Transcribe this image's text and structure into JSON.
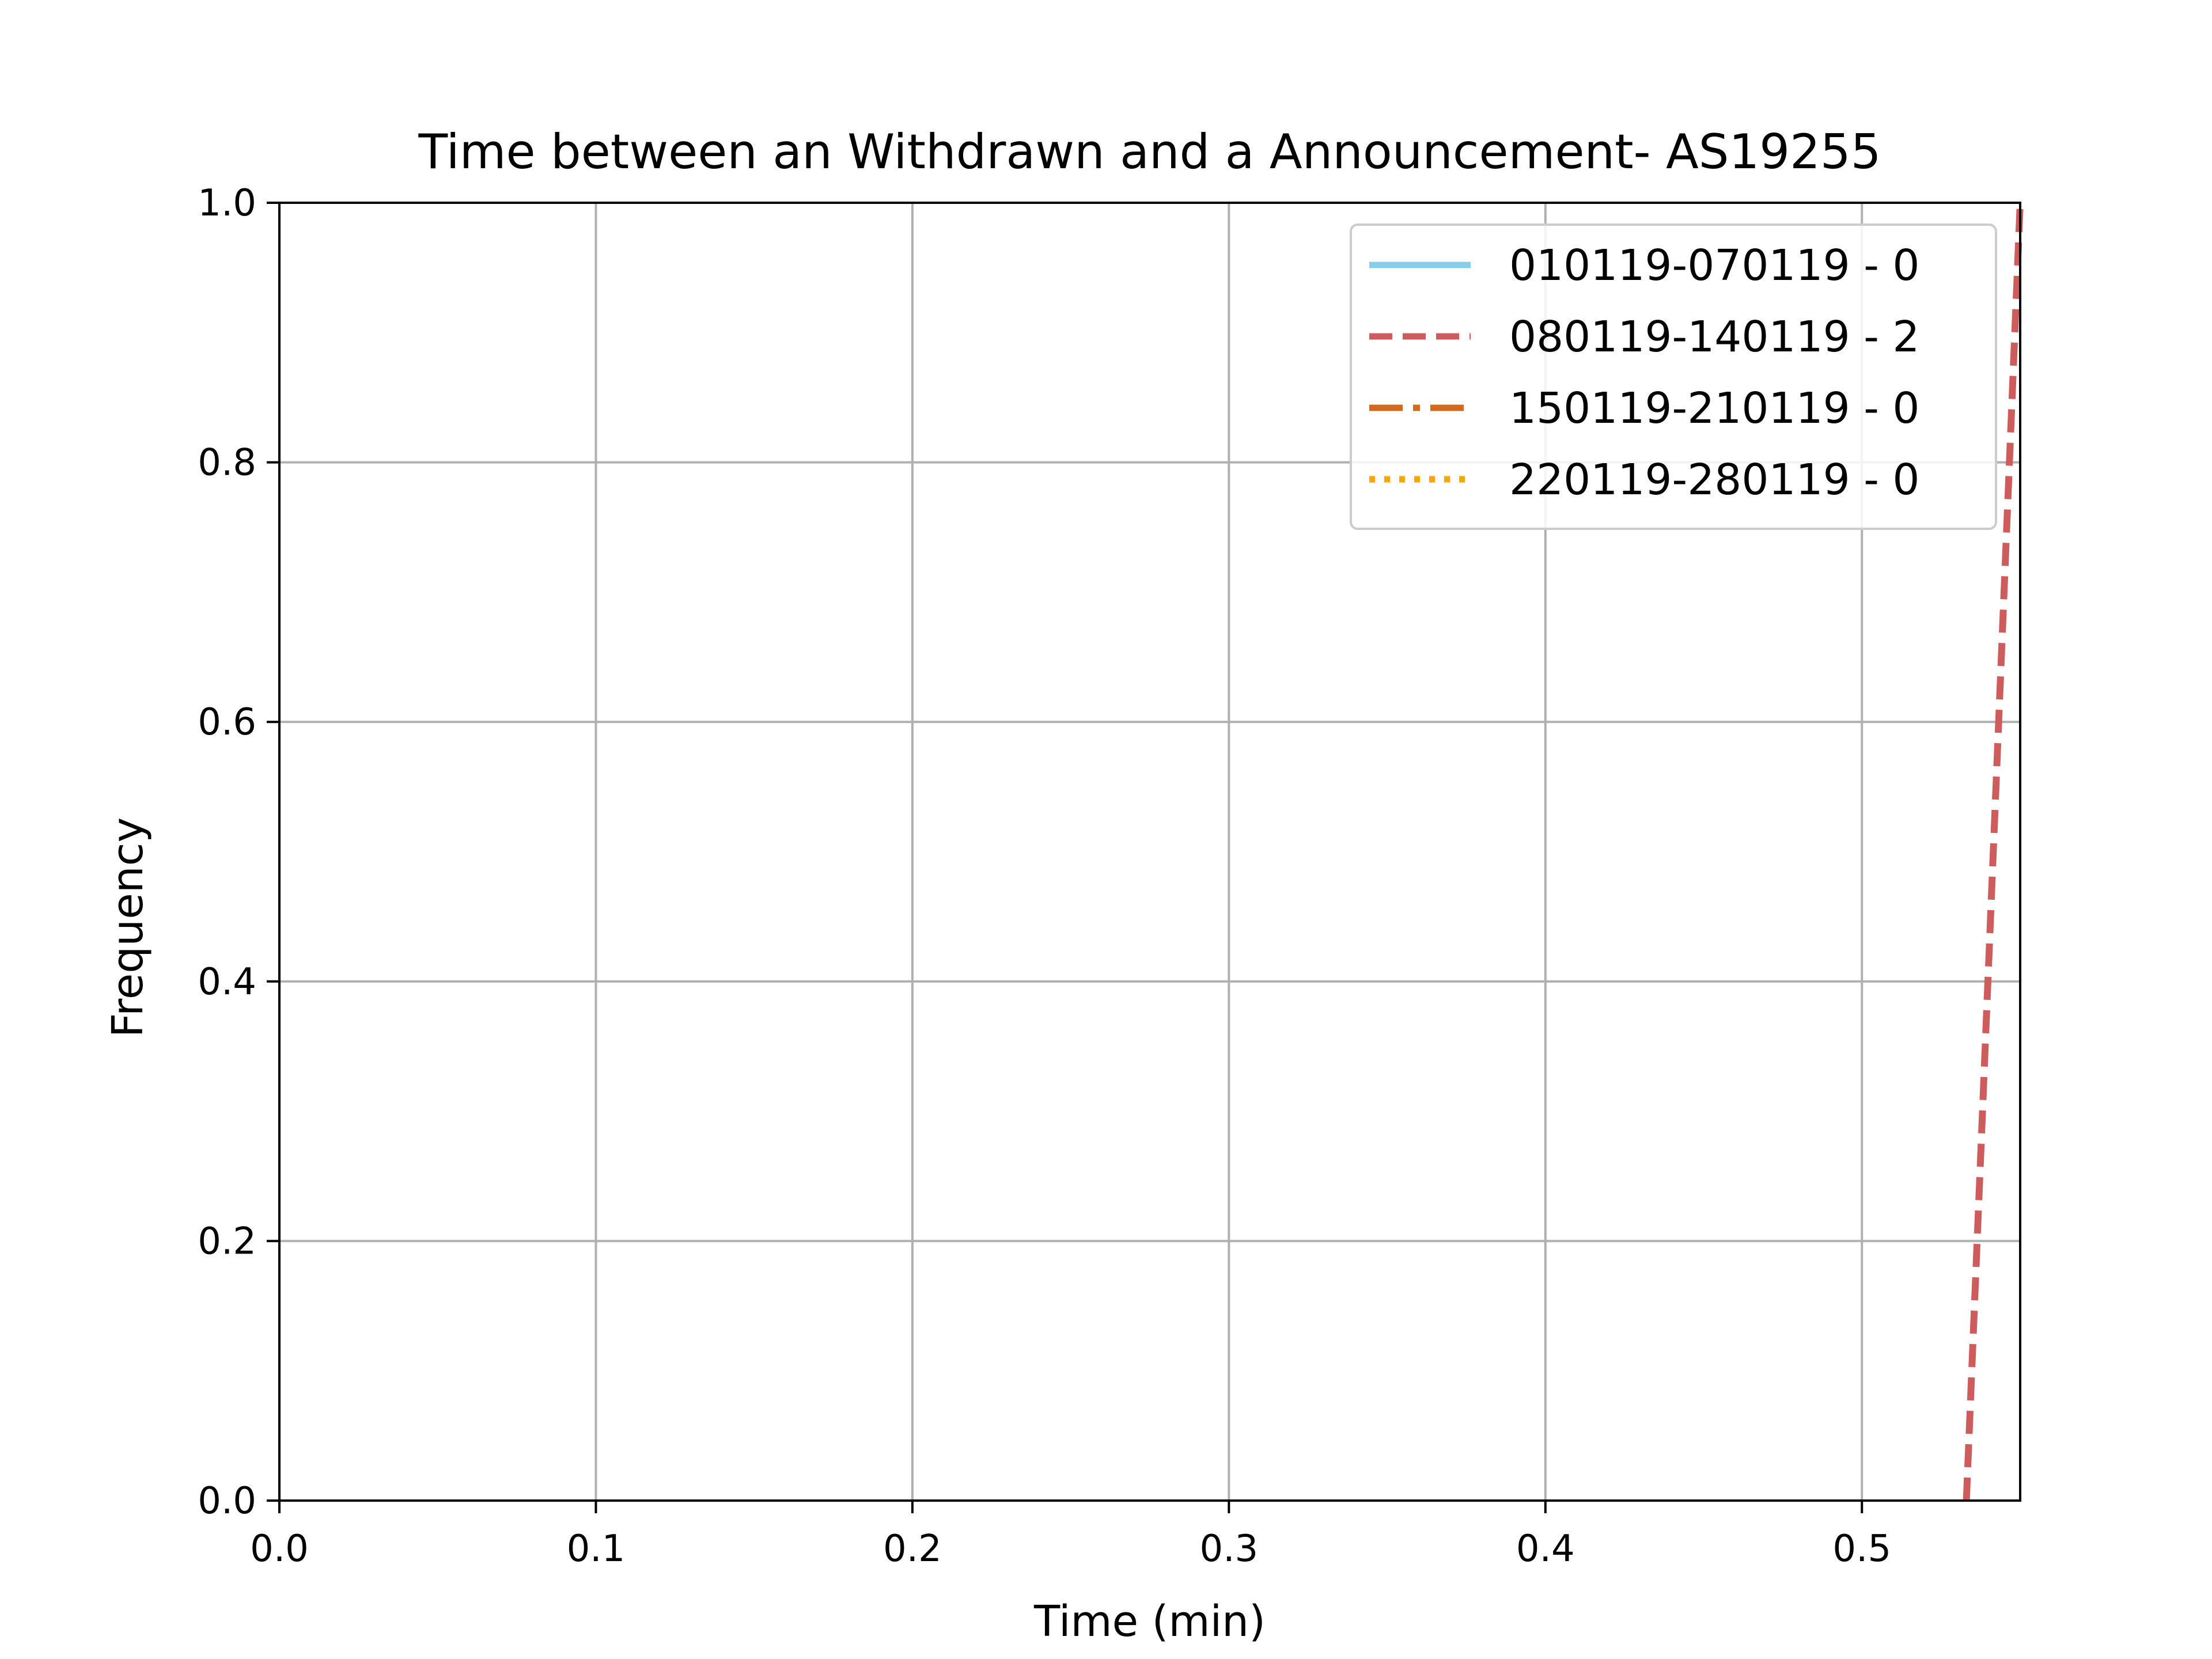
{
  "chart_data": {
    "type": "line",
    "title": "Time between an Withdrawn and a Announcement- AS19255",
    "xlabel": "Time (min)",
    "ylabel": "Frequency",
    "xlim": [
      0,
      0.55
    ],
    "ylim": [
      0,
      1.0
    ],
    "grid": true,
    "legend_position": "top-right",
    "x_ticks": [
      0.0,
      0.1,
      0.2,
      0.3,
      0.4,
      0.5
    ],
    "x_tick_labels": [
      "0.0",
      "0.1",
      "0.2",
      "0.3",
      "0.4",
      "0.5"
    ],
    "y_ticks": [
      0.0,
      0.2,
      0.4,
      0.6,
      0.8,
      1.0
    ],
    "y_tick_labels": [
      "0.0",
      "0.2",
      "0.4",
      "0.6",
      "0.8",
      "1.0"
    ],
    "series": [
      {
        "name": "010119-070119 - 0",
        "color": "#87ceeb",
        "line_style": "solid",
        "x": [],
        "y": []
      },
      {
        "name": "080119-140119 - 2",
        "color": "#cd5c5c",
        "line_style": "dashed",
        "x": [
          0.533,
          0.55
        ],
        "y": [
          0.0,
          1.0
        ]
      },
      {
        "name": "150119-210119 - 0",
        "color": "#d2691e",
        "line_style": "dashdot",
        "x": [],
        "y": []
      },
      {
        "name": "220119-280119 - 0",
        "color": "#ffa500",
        "line_style": "dotted",
        "x": [],
        "y": []
      }
    ]
  }
}
